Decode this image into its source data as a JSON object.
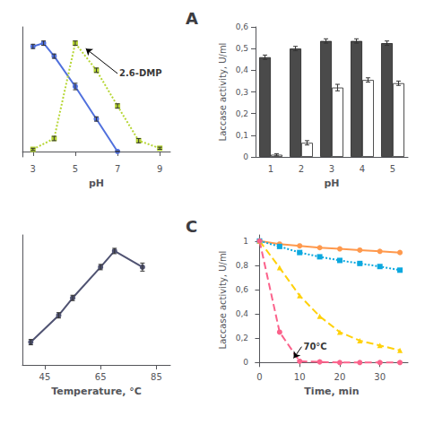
{
  "chart_data": [
    {
      "type": "line",
      "title": "A",
      "xlabel": "pH",
      "xlim": [
        2.5,
        9.5
      ],
      "xticks": [
        3,
        5,
        7,
        9
      ],
      "ylim": [
        -0.05,
        1.15
      ],
      "tick_labels": "x",
      "grid": false,
      "series": [
        {
          "x": [
            3,
            3.5,
            4,
            5,
            6,
            7
          ],
          "values": [
            0.97,
            1.0,
            0.88,
            0.6,
            0.3,
            0.0
          ],
          "errors": [
            0.02,
            0.02,
            0.02,
            0.03,
            0.02,
            0.0
          ],
          "marker": "circle",
          "line_style": "solid"
        },
        {
          "x": [
            3,
            4,
            5,
            6,
            7,
            8,
            9
          ],
          "values": [
            0.02,
            0.12,
            1.0,
            0.75,
            0.42,
            0.1,
            0.03
          ],
          "errors": [
            0.01,
            0.02,
            0.02,
            0.02,
            0.02,
            0.02,
            0.01
          ],
          "marker": "square",
          "line_style": "dotted"
        }
      ],
      "annotations": [
        {
          "text": "2.6-DMP",
          "xy": [
            5.5,
            0.95
          ],
          "xytext": [
            7.0,
            0.72
          ]
        }
      ]
    },
    {
      "type": "bar",
      "xlabel": "pH",
      "ylabel": "Laccase activity, U/ml",
      "categories": [
        1,
        2,
        3,
        4,
        5
      ],
      "ylim": [
        0,
        0.6
      ],
      "yticks": [
        0,
        {
          "value": 0.1,
          "label": "0,1"
        },
        {
          "value": 0.2,
          "label": "0,2"
        },
        {
          "value": 0.3,
          "label": "0,3"
        },
        {
          "value": 0.4,
          "label": "0,4"
        },
        {
          "value": 0.5,
          "label": "0,5"
        },
        {
          "value": 0.6,
          "label": "0,6"
        }
      ],
      "grid": false,
      "series": [
        {
          "color": "#4a4a4a",
          "values": [
            0.46,
            0.5,
            0.535,
            0.535,
            0.525
          ],
          "errors": [
            0.01,
            0.01,
            0.01,
            0.01,
            0.01
          ]
        },
        {
          "color": "#ffffff",
          "values": [
            0.01,
            0.065,
            0.32,
            0.355,
            0.34
          ],
          "errors": [
            0.005,
            0.01,
            0.015,
            0.01,
            0.01
          ]
        }
      ]
    },
    {
      "type": "line",
      "title": "C",
      "xlabel": "Temperature, °C",
      "xlim": [
        37,
        90
      ],
      "xticks": [
        45,
        65,
        85
      ],
      "ylim": [
        0.15,
        1.12
      ],
      "tick_labels": "x",
      "grid": false,
      "series": [
        {
          "x": [
            40,
            50,
            55,
            65,
            70,
            80
          ],
          "values": [
            0.32,
            0.52,
            0.65,
            0.88,
            1.0,
            0.88
          ],
          "errors": [
            0.02,
            0.02,
            0.02,
            0.02,
            0.02,
            0.03
          ],
          "marker": "circle",
          "line_style": "solid"
        }
      ]
    },
    {
      "type": "line",
      "xlabel": "Time, min",
      "ylabel": "Laccase activity, U/ml",
      "x": [
        0,
        5,
        10,
        15,
        20,
        25,
        30,
        35
      ],
      "xlim": [
        -1,
        37
      ],
      "xticks": [
        0,
        10,
        20,
        30
      ],
      "ylim": [
        -0.02,
        1.05
      ],
      "yticks": [
        0,
        {
          "value": 0.2,
          "label": "0,2"
        },
        {
          "value": 0.4,
          "label": "0,4"
        },
        {
          "value": 0.6,
          "label": "0,6"
        },
        {
          "value": 0.8,
          "label": "0,8"
        },
        1
      ],
      "grid": false,
      "series": [
        {
          "values": [
            1.0,
            0.975,
            0.96,
            0.945,
            0.935,
            0.925,
            0.915,
            0.905
          ],
          "marker": "circle",
          "line_style": "solid"
        },
        {
          "values": [
            1.0,
            0.955,
            0.905,
            0.87,
            0.84,
            0.815,
            0.79,
            0.76
          ],
          "marker": "square",
          "line_style": "dotted"
        },
        {
          "values": [
            1.0,
            0.78,
            0.55,
            0.38,
            0.25,
            0.18,
            0.14,
            0.1
          ],
          "marker": "triangle",
          "line_style": "dashed"
        },
        {
          "values": [
            1.0,
            0.25,
            0.01,
            0.005,
            0.0,
            0.0,
            0.0,
            0.0
          ],
          "marker": "circle",
          "line_style": "dashed"
        }
      ],
      "annotations": [
        {
          "text": "70°C",
          "xy": [
            8.5,
            0.035
          ],
          "xytext": [
            10.5,
            0.13
          ]
        }
      ]
    }
  ]
}
